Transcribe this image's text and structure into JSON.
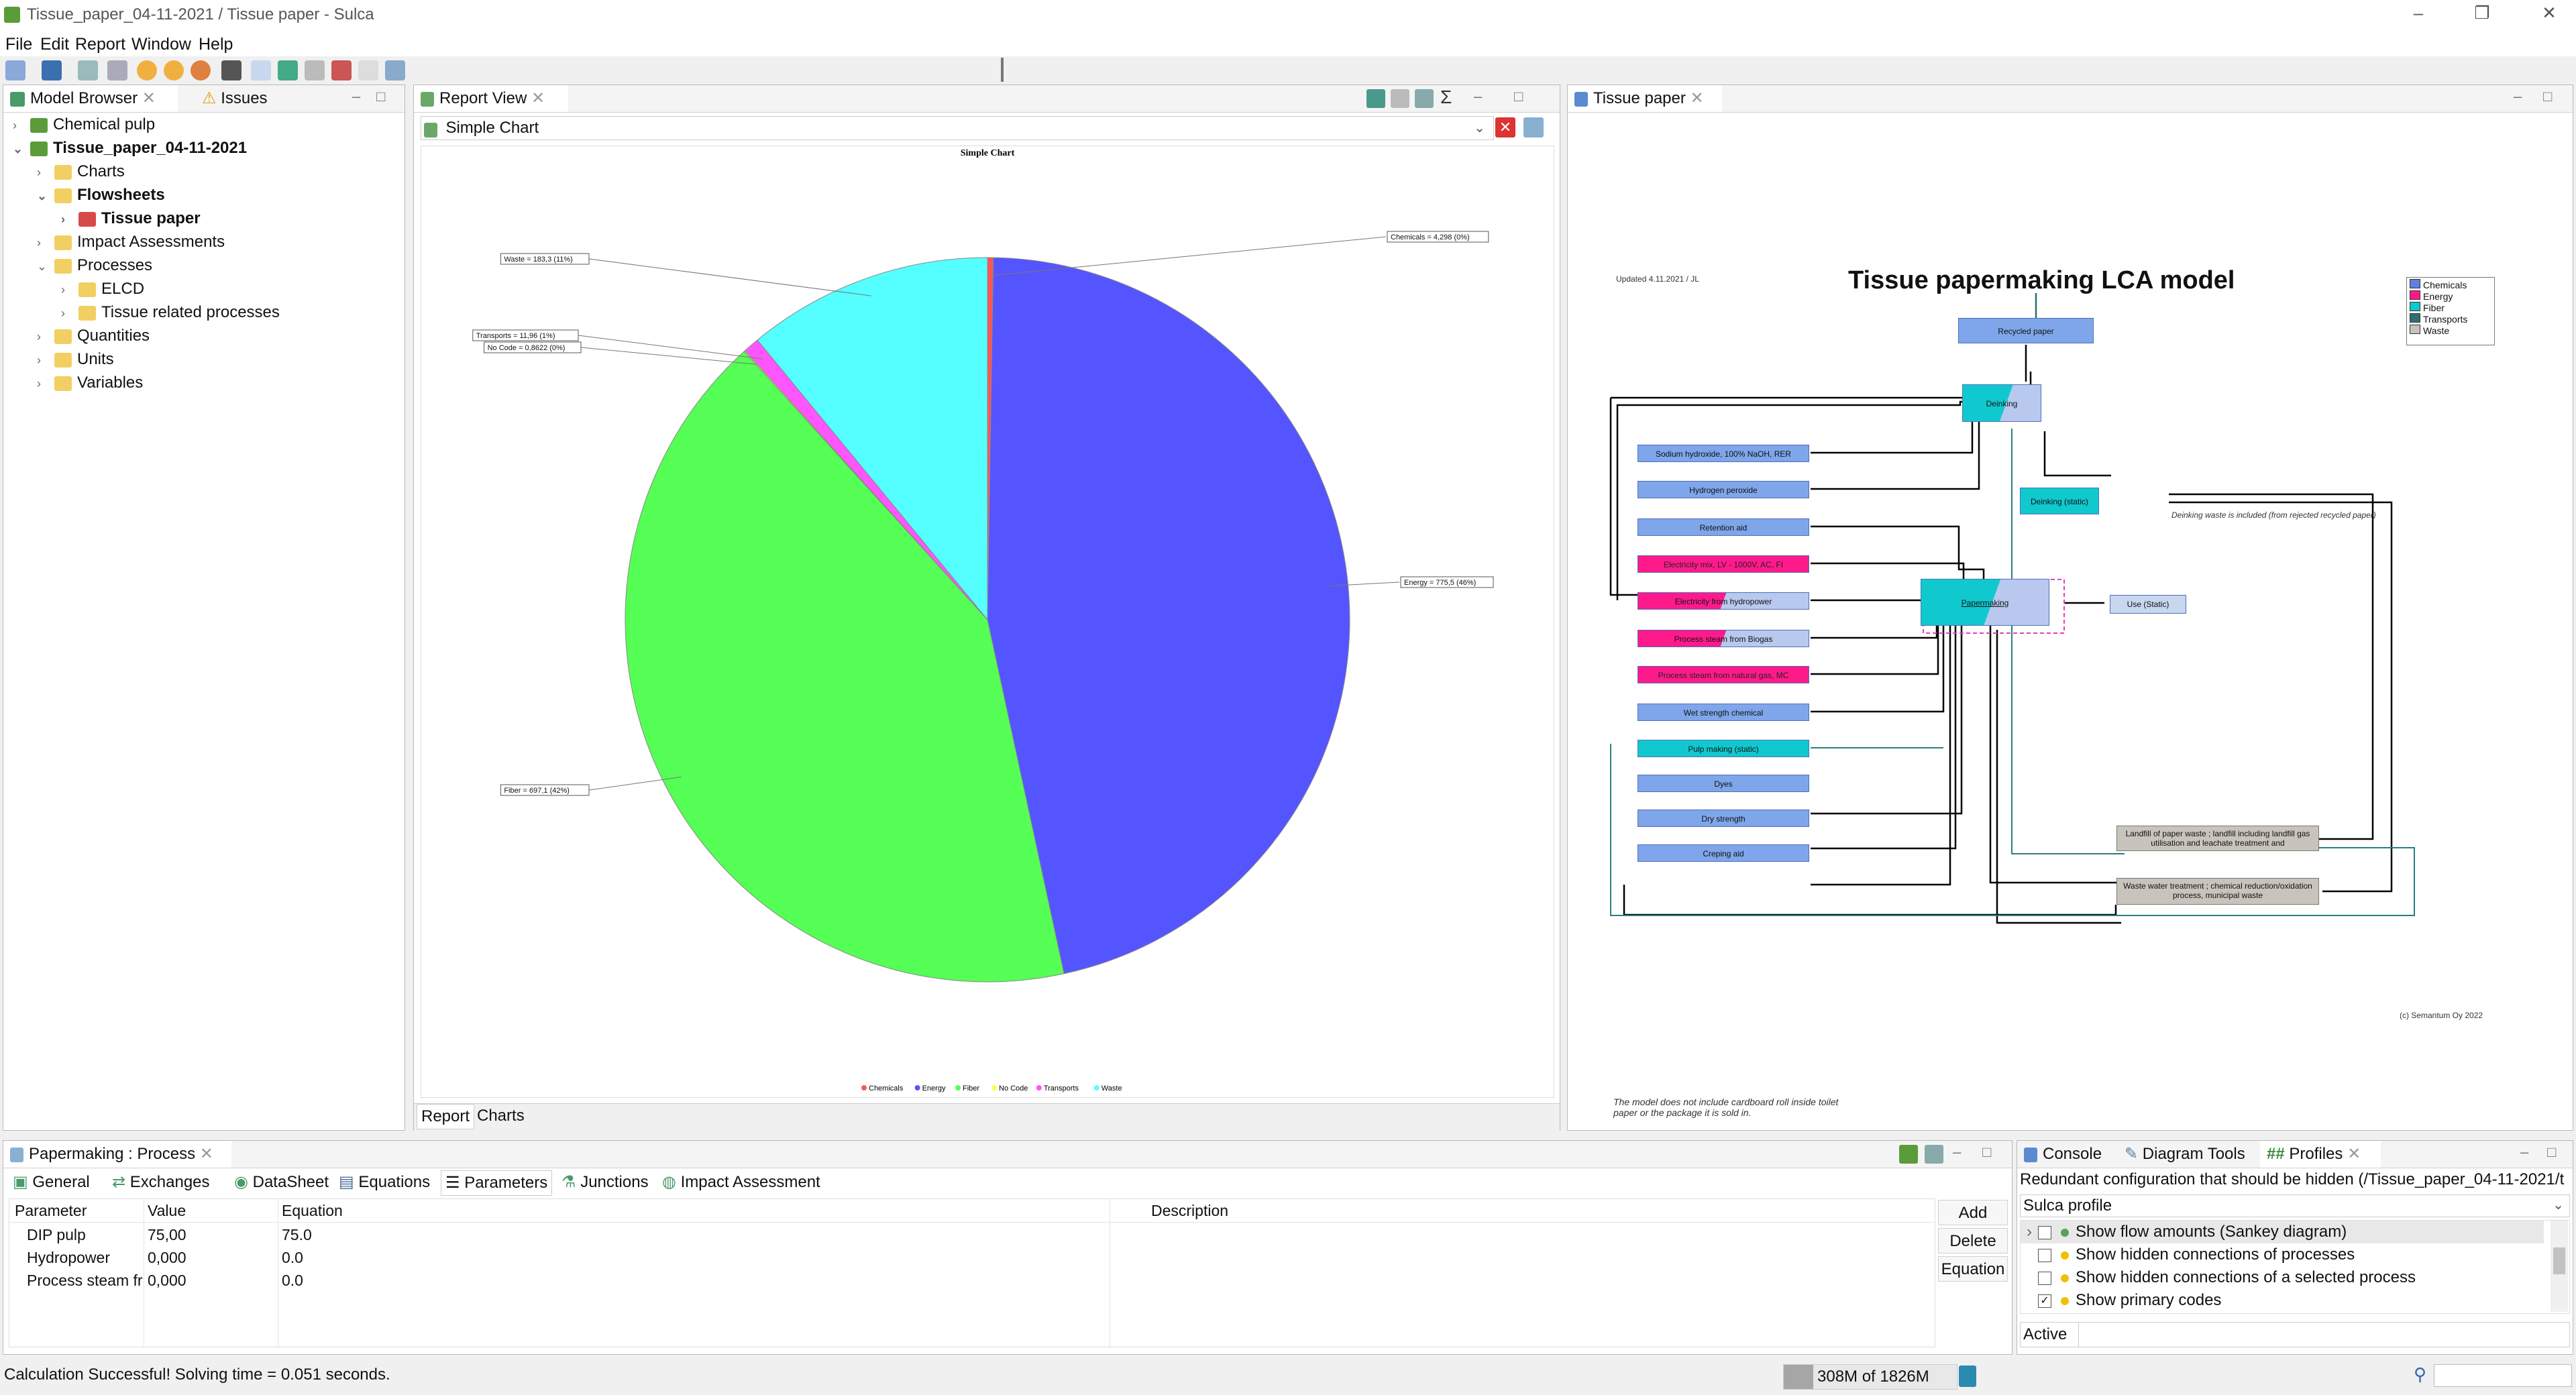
{
  "app": {
    "title": "Tissue_paper_04-11-2021 / Tissue paper - Sulca",
    "window_controls": [
      "–",
      "❐",
      "✕"
    ]
  },
  "menu": [
    "File",
    "Edit",
    "Report",
    "Window",
    "Help"
  ],
  "model_browser": {
    "tabs": [
      "Model Browser",
      "Issues"
    ],
    "tree": [
      {
        "label": "Chemical pulp",
        "level": 0,
        "expanded": false,
        "bold": false,
        "icon": "model-icon"
      },
      {
        "label": "Tissue_paper_04-11-2021",
        "level": 0,
        "expanded": true,
        "bold": true,
        "icon": "model-icon"
      },
      {
        "label": "Charts",
        "level": 1,
        "expanded": false,
        "bold": false,
        "icon": "folder-icon"
      },
      {
        "label": "Flowsheets",
        "level": 1,
        "expanded": true,
        "bold": true,
        "icon": "folder-icon"
      },
      {
        "label": "Tissue paper",
        "level": 2,
        "expanded": false,
        "bold": true,
        "icon": "flowsheet-icon"
      },
      {
        "label": "Impact Assessments",
        "level": 1,
        "expanded": false,
        "bold": false,
        "icon": "folder-icon"
      },
      {
        "label": "Processes",
        "level": 1,
        "expanded": true,
        "bold": false,
        "icon": "folder-icon"
      },
      {
        "label": "ELCD",
        "level": 2,
        "expanded": false,
        "bold": false,
        "icon": "folder-icon"
      },
      {
        "label": "Tissue related processes",
        "level": 2,
        "expanded": false,
        "bold": false,
        "icon": "folder-icon"
      },
      {
        "label": "Quantities",
        "level": 1,
        "expanded": false,
        "bold": false,
        "icon": "folder-icon"
      },
      {
        "label": "Units",
        "level": 1,
        "expanded": false,
        "bold": false,
        "icon": "folder-icon"
      },
      {
        "label": "Variables",
        "level": 1,
        "expanded": false,
        "bold": false,
        "icon": "folder-icon"
      }
    ]
  },
  "report_view": {
    "tab": "Report View",
    "selector": "Simple Chart",
    "bottom_tabs": [
      "Report",
      "Charts"
    ]
  },
  "chart_data": {
    "type": "pie",
    "title": "Simple Chart",
    "categories": [
      "Chemicals",
      "Energy",
      "Fiber",
      "No Code",
      "Transports",
      "Waste"
    ],
    "values": [
      4.298,
      775.5,
      697.1,
      0.8622,
      11.96,
      183.3
    ],
    "labels": [
      "Chemicals = 4,298 (0%)",
      "Energy = 775,5 (46%)",
      "Fiber = 697,1 (42%)",
      "No Code = 0,8622 (0%)",
      "Transports = 11,96 (1%)",
      "Waste = 183,3 (11%)"
    ],
    "colors": [
      "#ff5555",
      "#5555ff",
      "#55ff55",
      "#ffff55",
      "#ff55ff",
      "#55ffff"
    ],
    "legend_position": "bottom"
  },
  "diagram": {
    "tab": "Tissue paper",
    "title": "Tissue papermaking LCA model",
    "updated": "Updated 4.11.2021 / JL",
    "copyright": "(c) Semantum Oy 2022",
    "note_deinking": "Deinking waste is included (from rejected recycled paper)",
    "note_bottom": "The model does not include cardboard roll inside toilet paper or the package it is sold in.",
    "legend": [
      {
        "label": "Chemicals",
        "color": "#5d7fe0"
      },
      {
        "label": "Energy",
        "color": "#ff1a8c"
      },
      {
        "label": "Fiber",
        "color": "#10c9cf"
      },
      {
        "label": "Transports",
        "color": "#2f6f70"
      },
      {
        "label": "Waste",
        "color": "#c8c4bc"
      }
    ],
    "nodes": {
      "recycled_paper": "Recycled paper",
      "deinking": "Deinking",
      "deinking_static": "Deinking (static)",
      "papermaking": "Papermaking",
      "use_static": "Use (Static)",
      "sodium": "Sodium hydroxide, 100% NaOH, RER",
      "hydrogen": "Hydrogen peroxide",
      "retention": "Retention aid",
      "electricity_grid": "Electricity mix, LV - 1000V, AC, FI",
      "electricity_hydro": "Electricity from hydropower",
      "steam_biogas": "Process steam from Biogas",
      "steam_ng": "Process steam from natural gas, MC",
      "wet_strength": "Wet strength chemical",
      "pulp_making": "Pulp making (static)",
      "dyes": "Dyes",
      "dry_strength": "Dry strength",
      "creping": "Creping aid",
      "landfill": "Landfill of paper waste ; landfill including landfill gas utilisation and leachate treatment and",
      "wastewater": "Waste water treatment ; chemical reduction/oxidation process, municipal waste"
    }
  },
  "process_editor": {
    "tab": "Papermaking : Process",
    "sub_tabs": [
      "General",
      "Exchanges",
      "DataSheet",
      "Equations",
      "Parameters",
      "Junctions",
      "Impact Assessment"
    ],
    "columns": [
      "Parameter",
      "Value",
      "Equation",
      "Description"
    ],
    "rows": [
      {
        "parameter": "DIP pulp",
        "value": "75,00",
        "equation": "75.0",
        "description": ""
      },
      {
        "parameter": "Hydropower",
        "value": "0,000",
        "equation": "0.0",
        "description": ""
      },
      {
        "parameter": "Process steam fr",
        "value": "0,000",
        "equation": "0.0",
        "description": ""
      }
    ],
    "buttons": [
      "Add",
      "Delete",
      "Equation"
    ]
  },
  "profiles": {
    "tabs": [
      "Console",
      "Diagram Tools",
      "Profiles"
    ],
    "message": "Redundant configuration that should be hidden (/Tissue_paper_04-11-2021/t",
    "profile": "Sulca profile",
    "items": [
      {
        "label": "Show flow amounts (Sankey diagram)",
        "checked": false,
        "expandable": true
      },
      {
        "label": "Show hidden connections of processes",
        "checked": false,
        "expandable": false
      },
      {
        "label": "Show hidden connections of a selected process",
        "checked": false,
        "expandable": false
      },
      {
        "label": "Show primary codes",
        "checked": true,
        "expandable": false
      }
    ],
    "active_label": "Active"
  },
  "status": {
    "message": "Calculation Successful! Solving time = 0.051 seconds.",
    "memory": "308M of 1826M"
  }
}
